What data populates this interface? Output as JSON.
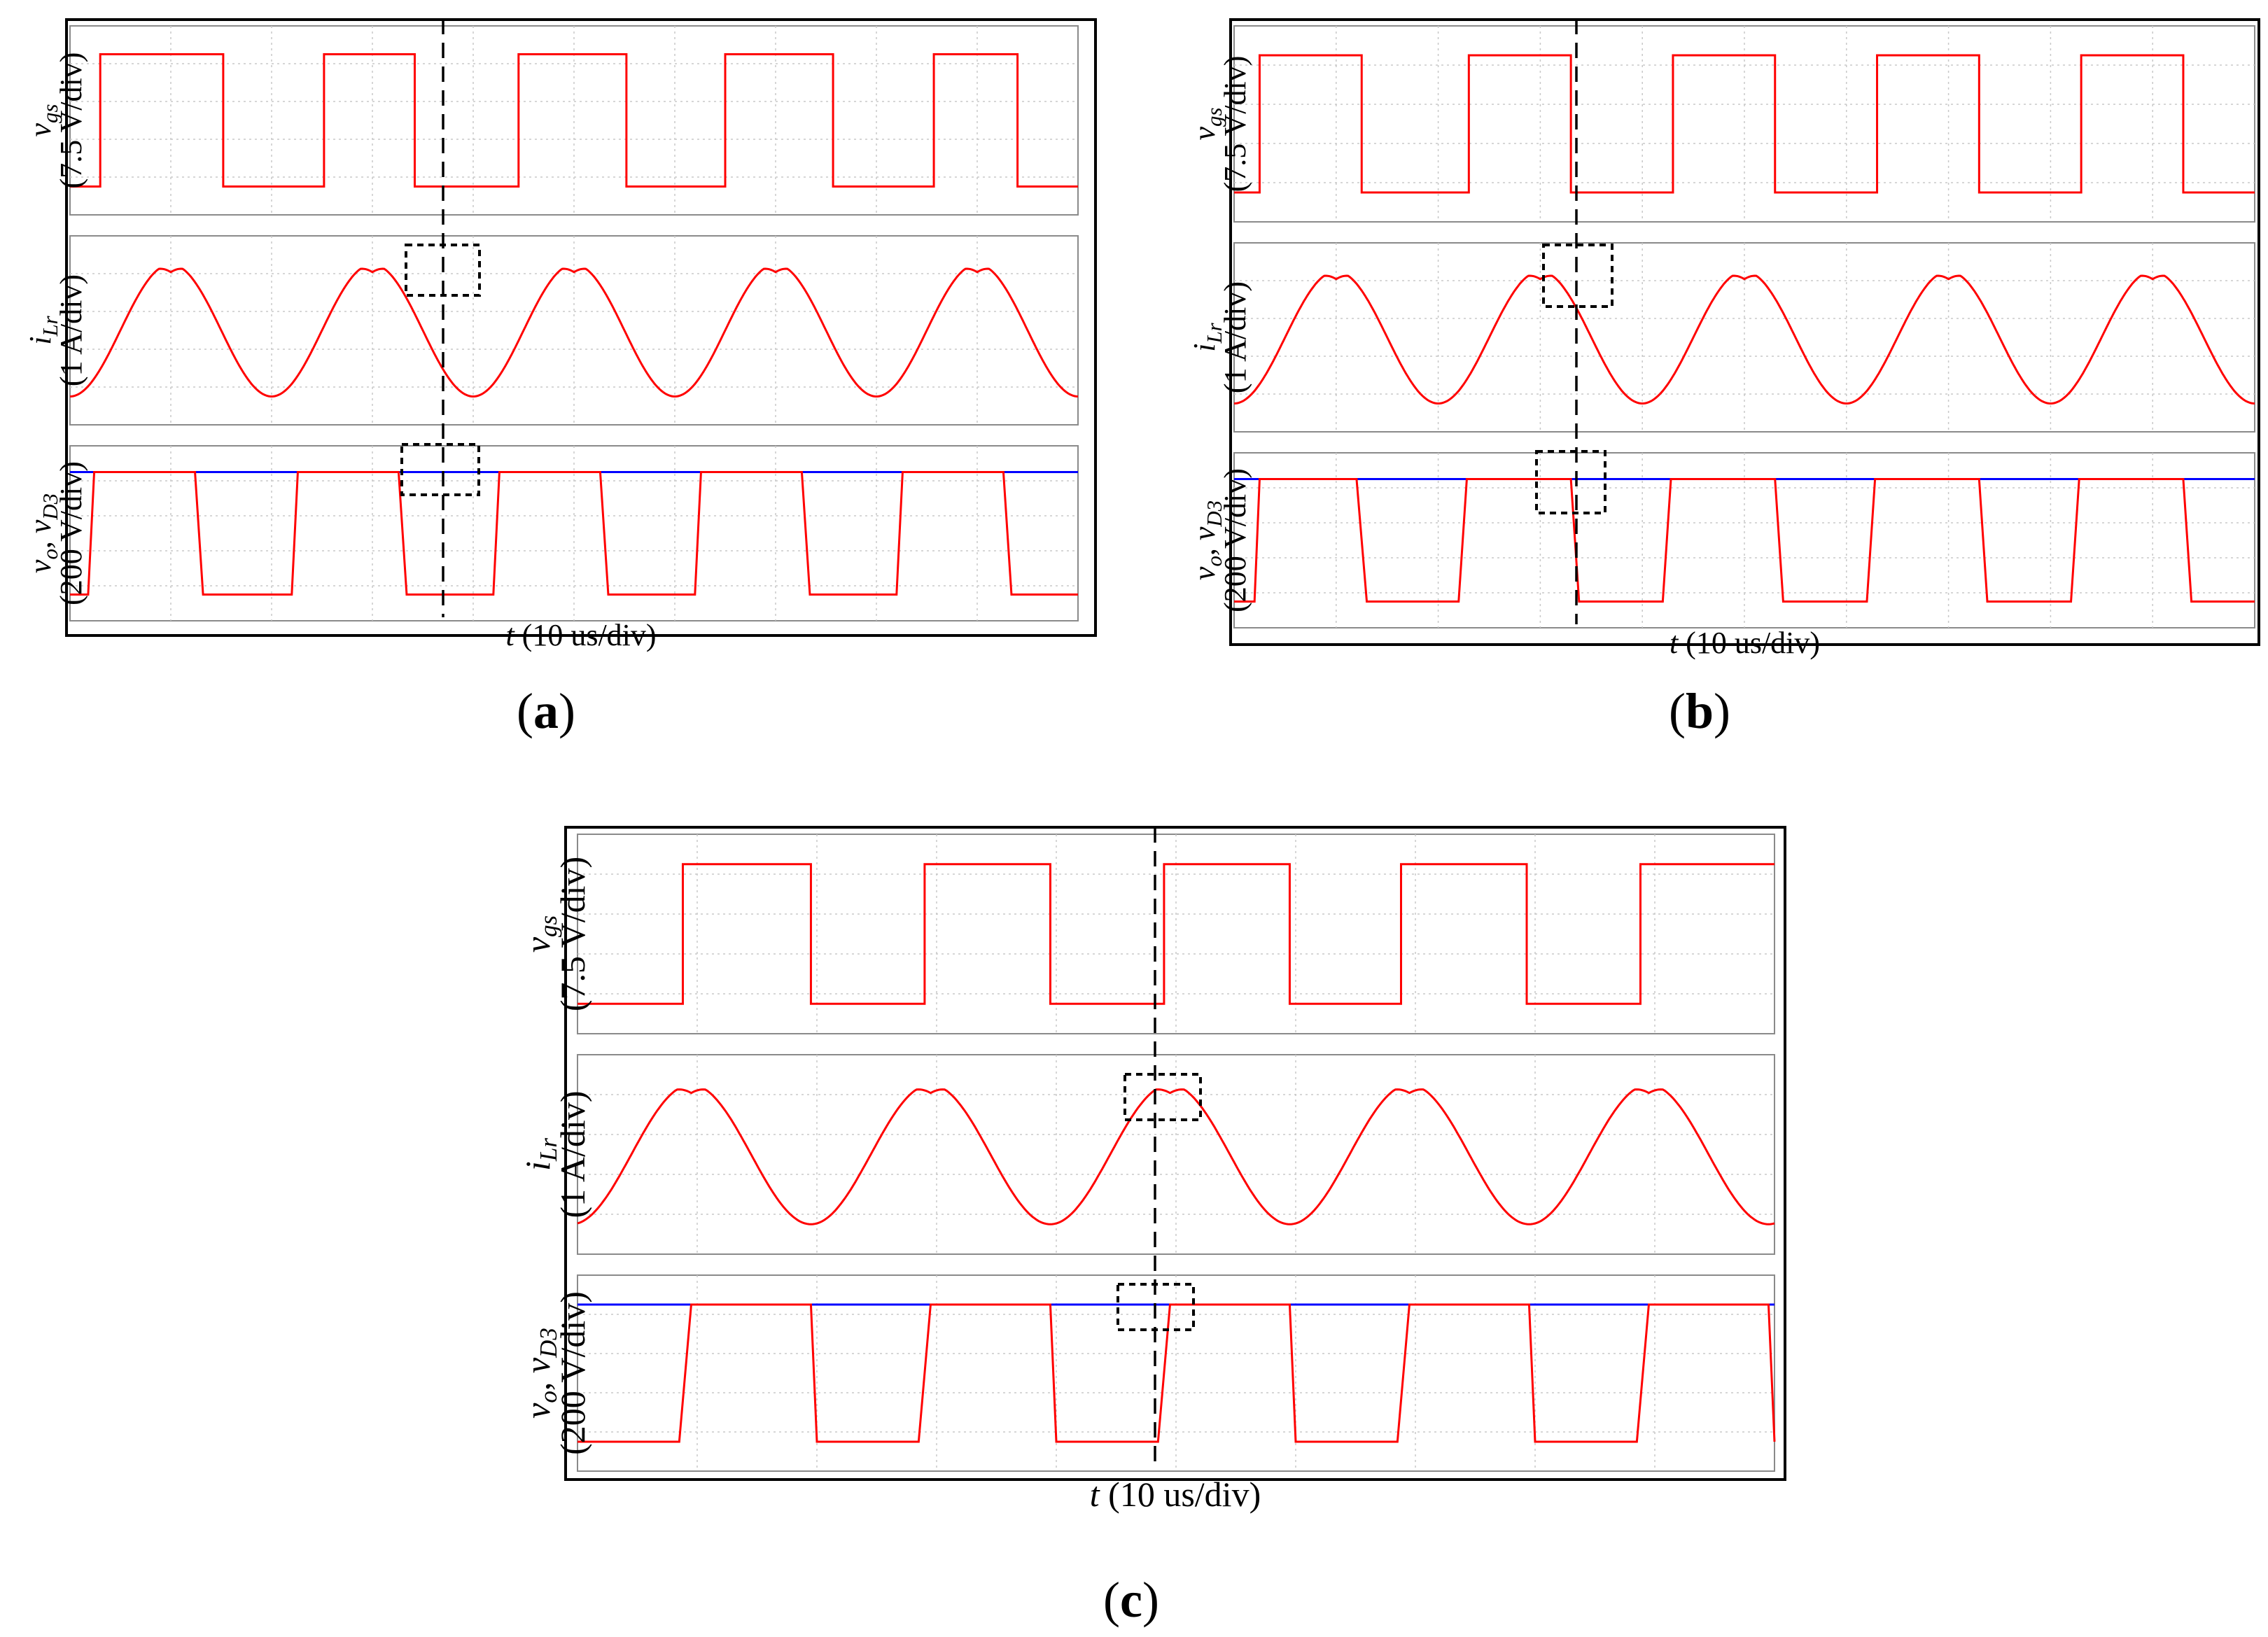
{
  "figure": {
    "captions": [
      {
        "open": "(",
        "letter": "a",
        "close": ")"
      },
      {
        "open": "(",
        "letter": "b",
        "close": ")"
      },
      {
        "open": "(",
        "letter": "c",
        "close": ")"
      }
    ]
  },
  "chart_data": [
    {
      "type": "line",
      "panel": "a",
      "xlabel": {
        "var": "t",
        "unit": "(10 us/div)"
      },
      "subplots": [
        {
          "channel": "vgs",
          "label_var": "v",
          "label_sub": "gs",
          "scale": "(7.5 V/div)",
          "series": [
            {
              "color": "#ff0000",
              "waveform": "square",
              "low": 0,
              "high": 1,
              "edges": [
                0.3,
                1.52,
                2.52,
                3.42,
                4.45,
                5.52,
                6.5,
                7.57,
                8.57,
                9.4
              ]
            }
          ]
        },
        {
          "channel": "iLr",
          "label_var": "i",
          "label_sub": "Lr",
          "scale": "(1 A/div)",
          "series": [
            {
              "color": "#ff0000",
              "waveform": "quasi-sinusoidal",
              "period_div": 2.0,
              "peaks_x": [
                1.0,
                3.0,
                5.0,
                7.0
              ],
              "troughs_x": [
                0.05,
                2.0,
                4.0,
                6.0,
                8.0
              ]
            }
          ]
        },
        {
          "channel": "vo_vD3",
          "label_var": "v",
          "label_sub": "o",
          "label_var2": "v",
          "label_sub2": "D3",
          "scale": "(200 V/div)",
          "series": [
            {
              "color": "#0000ff",
              "waveform": "flat",
              "value": 1
            },
            {
              "color": "#ff0000",
              "waveform": "trapezoid",
              "segments": [
                [
                  0.18,
                  0.24,
                  1.24,
                  1.32
                ],
                [
                  2.2,
                  2.26,
                  3.26,
                  3.34
                ],
                [
                  4.2,
                  4.26,
                  5.26,
                  5.34
                ],
                [
                  6.2,
                  6.26,
                  7.26,
                  7.34
                ],
                [
                  8.2,
                  8.26,
                  9.26,
                  9.34
                ]
              ]
            }
          ]
        }
      ]
    },
    {
      "type": "line",
      "panel": "b",
      "xlabel": {
        "var": "t",
        "unit": "(10 us/div)"
      },
      "subplots": [
        {
          "channel": "vgs",
          "label_var": "v",
          "label_sub": "gs",
          "scale": "(7.5 V/div)",
          "series": [
            {
              "color": "#ff0000",
              "waveform": "square",
              "low": 0,
              "high": 1,
              "edges": [
                0.25,
                1.25,
                2.3,
                3.3,
                4.3,
                5.3,
                6.3,
                7.3,
                8.3,
                9.3
              ]
            }
          ]
        },
        {
          "channel": "iLr",
          "label_var": "i",
          "label_sub": "Lr",
          "scale": "(1 A/div)",
          "series": [
            {
              "color": "#ff0000",
              "waveform": "quasi-sinusoidal",
              "period_div": 2.0,
              "peaks_x": [
                1.0,
                3.0,
                5.0,
                7.0,
                9.0
              ],
              "troughs_x": [
                0.05,
                2.0,
                4.0,
                6.0,
                8.0
              ]
            }
          ]
        },
        {
          "channel": "vo_vD3",
          "label_var": "v",
          "label_sub": "o",
          "label_var2": "v",
          "label_sub2": "D3",
          "scale": "(200 V/div)",
          "series": [
            {
              "color": "#0000ff",
              "waveform": "flat",
              "value": 1
            },
            {
              "color": "#ff0000",
              "waveform": "trapezoid",
              "segments": [
                [
                  0.2,
                  0.25,
                  1.2,
                  1.3
                ],
                [
                  2.2,
                  2.28,
                  3.3,
                  3.38
                ],
                [
                  4.2,
                  4.28,
                  5.3,
                  5.38
                ],
                [
                  6.2,
                  6.28,
                  7.3,
                  7.38
                ],
                [
                  8.2,
                  8.28,
                  9.3,
                  9.38
                ]
              ]
            }
          ]
        }
      ]
    },
    {
      "type": "line",
      "panel": "c",
      "xlabel": {
        "var": "t",
        "unit": "(10 us/div)"
      },
      "subplots": [
        {
          "channel": "vgs",
          "label_var": "v",
          "label_sub": "gs",
          "scale": "(7.5 V/div)",
          "series": [
            {
              "color": "#ff0000",
              "waveform": "square",
              "low": 0,
              "high": 1,
              "edges": [
                0.88,
                1.95,
                2.9,
                3.95,
                4.9,
                5.95,
                6.88,
                7.93,
                8.88
              ]
            }
          ]
        },
        {
          "channel": "iLr",
          "label_var": "i",
          "label_sub": "Lr",
          "scale": "(1 A/div)",
          "series": [
            {
              "color": "#ff0000",
              "waveform": "quasi-sinusoidal",
              "period_div": 2.0,
              "peaks_x": [
                0.95,
                2.95,
                4.95,
                6.95,
                8.95
              ],
              "troughs_x": [
                1.95,
                3.95,
                5.95,
                7.95,
                9.95
              ]
            }
          ]
        },
        {
          "channel": "vo_vD3",
          "label_var": "v",
          "label_sub": "o",
          "label_var2": "v",
          "label_sub2": "D3",
          "scale": "(200 V/div)",
          "series": [
            {
              "color": "#0000ff",
              "waveform": "flat",
              "value": 1
            },
            {
              "color": "#ff0000",
              "waveform": "trapezoid",
              "segments": [
                [
                  0.85,
                  0.95,
                  1.95,
                  2.0
                ],
                [
                  2.85,
                  2.95,
                  3.95,
                  4.0
                ],
                [
                  4.85,
                  4.95,
                  5.95,
                  6.0
                ],
                [
                  6.85,
                  6.95,
                  7.95,
                  8.0
                ],
                [
                  8.85,
                  8.95,
                  9.95,
                  10.0
                ]
              ]
            }
          ]
        }
      ]
    }
  ]
}
